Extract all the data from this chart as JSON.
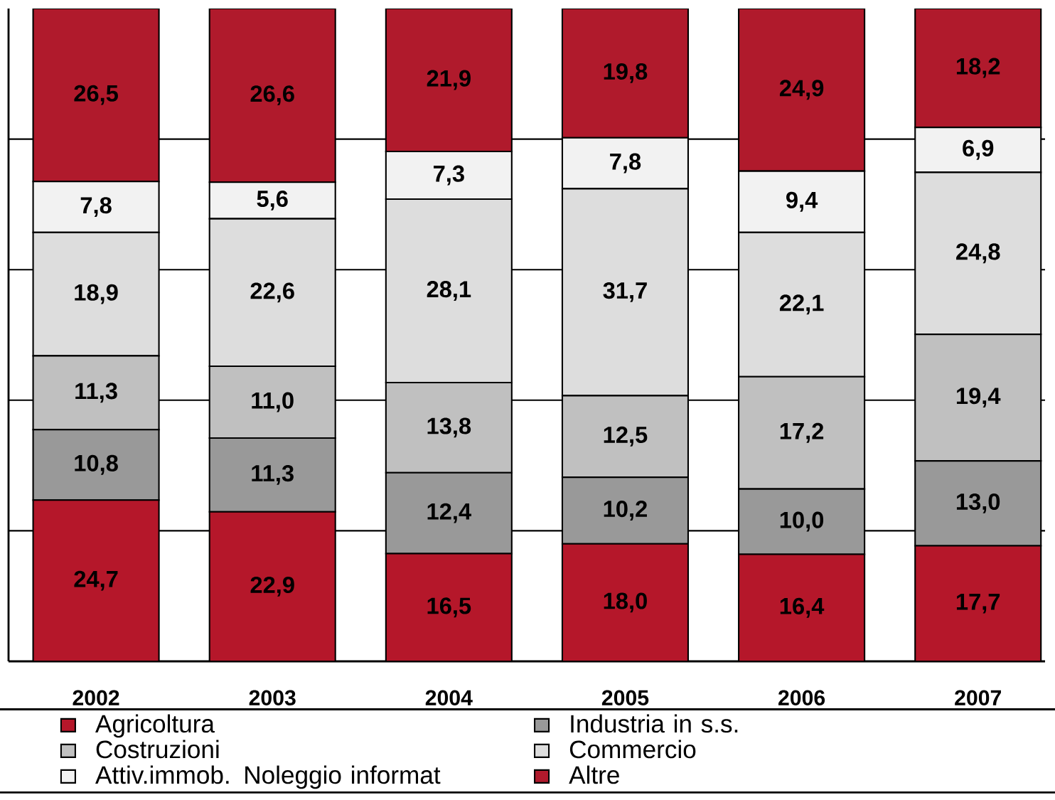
{
  "chart_data": {
    "type": "bar",
    "stacked": true,
    "categories": [
      "2002",
      "2003",
      "2004",
      "2005",
      "2006",
      "2007"
    ],
    "series": [
      {
        "name": "Agricoltura",
        "color": "#b5172a",
        "values": [
          24.7,
          22.9,
          16.5,
          18.0,
          16.4,
          17.7
        ],
        "value_labels": [
          "24,7",
          "22,9",
          "16,5",
          "18,0",
          "16,4",
          "17,7"
        ]
      },
      {
        "name": "Industria in s.s.",
        "color": "#999999",
        "values": [
          10.8,
          11.3,
          12.4,
          10.2,
          10.0,
          13.0
        ],
        "value_labels": [
          "10,8",
          "11,3",
          "12,4",
          "10,2",
          "10,0",
          "13,0"
        ]
      },
      {
        "name": "Costruzioni",
        "color": "#c0c0c0",
        "values": [
          11.3,
          11.0,
          13.8,
          12.5,
          17.2,
          19.4
        ],
        "value_labels": [
          "11,3",
          "11,0",
          "13,8",
          "12,5",
          "17,2",
          "19,4"
        ]
      },
      {
        "name": "Commercio",
        "color": "#dddddd",
        "values": [
          18.9,
          22.6,
          28.1,
          31.7,
          22.1,
          24.8
        ],
        "value_labels": [
          "18,9",
          "22,6",
          "28,1",
          "31,7",
          "22,1",
          "24,8"
        ]
      },
      {
        "name": "Attiv.immob. Noleggio informat",
        "color": "#f2f2f2",
        "values": [
          7.8,
          5.6,
          7.3,
          7.8,
          9.4,
          6.9
        ],
        "value_labels": [
          "7,8",
          "5,6",
          "7,3",
          "7,8",
          "9,4",
          "6,9"
        ]
      },
      {
        "name": "Altre",
        "color": "#b01a2c",
        "values": [
          26.5,
          26.6,
          21.9,
          19.8,
          24.9,
          18.2
        ],
        "value_labels": [
          "26,5",
          "26,6",
          "21,9",
          "19,8",
          "24,9",
          "18,2"
        ]
      }
    ],
    "ylim": [
      0,
      100
    ],
    "yticks": [
      {
        "value": 20,
        "label": null
      },
      {
        "value": 40,
        "label": null
      },
      {
        "value": 60,
        "label": null
      },
      {
        "value": 80,
        "label": null
      }
    ],
    "tick_labels": "x",
    "grid": "y",
    "legend": "bottom"
  }
}
